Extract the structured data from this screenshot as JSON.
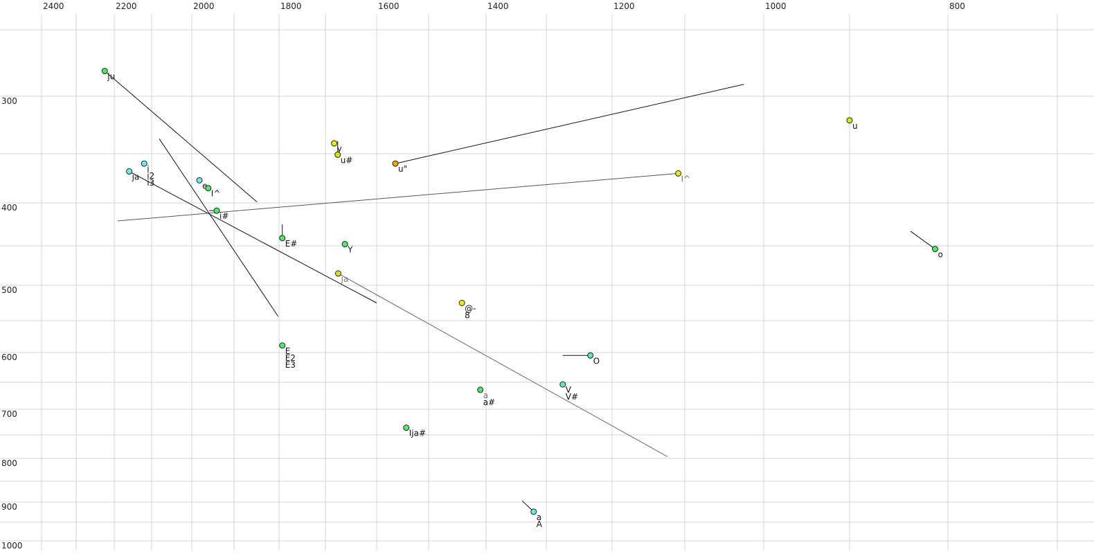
{
  "chart_data": {
    "type": "scatter",
    "title": "",
    "xlabel": "",
    "ylabel": "",
    "x_axis": {
      "position": "top",
      "reversed": true,
      "range": [
        2400,
        700
      ],
      "tick_labels": [
        2400,
        2200,
        2000,
        1800,
        1600,
        1400,
        1200,
        1000,
        800
      ],
      "grid_step": 100
    },
    "y_axis": {
      "position": "left",
      "reversed": false,
      "range": [
        250,
        1000
      ],
      "tick_labels": [
        300,
        400,
        500,
        600,
        700,
        800,
        900,
        1000
      ],
      "grid_step": 50
    },
    "grid": true,
    "points": [
      {
        "labels": [
          "ju"
        ],
        "x": 2225,
        "y": 281,
        "color": "#44ee66"
      },
      {
        "labels": [
          "i",
          "i2",
          "i3"
        ],
        "x": 2120,
        "y": 360,
        "color": "#66eeee"
      },
      {
        "labels": [
          "ja"
        ],
        "x": 2160,
        "y": 368,
        "color": "#66eeee"
      },
      {
        "labels": [
          "e"
        ],
        "x": 1982,
        "y": 377,
        "color": "#66eeee"
      },
      {
        "labels": [
          "I^"
        ],
        "x": 1961,
        "y": 385,
        "color": "#44ee66"
      },
      {
        "labels": [
          "i#"
        ],
        "x": 1941,
        "y": 409,
        "color": "#44ee66"
      },
      {
        "labels": [
          "E#"
        ],
        "x": 1793,
        "y": 441,
        "color": "#44ee66"
      },
      {
        "labels": [
          "y"
        ],
        "x": 1683,
        "y": 341,
        "color": "#eeee00"
      },
      {
        "labels": [
          "u#"
        ],
        "x": 1676,
        "y": 351,
        "color": "#ccee00"
      },
      {
        "labels": [
          "u\""
        ],
        "x": 1564,
        "y": 360,
        "color": "#eeaa00"
      },
      {
        "labels": [
          "I^"
        ],
        "x": 1109,
        "y": 370,
        "color": "#eeee00",
        "muted": true
      },
      {
        "labels": [
          "u"
        ],
        "x": 900,
        "y": 321,
        "color": "#ccee00"
      },
      {
        "labels": [
          "o"
        ],
        "x": 813,
        "y": 454,
        "color": "#44ee66"
      },
      {
        "labels": [
          "Y"
        ],
        "x": 1662,
        "y": 448,
        "color": "#44ee66"
      },
      {
        "labels": [
          "ja"
        ],
        "x": 1675,
        "y": 485,
        "color": "#dddd22",
        "muted": true
      },
      {
        "labels": [
          "@-",
          "8"
        ],
        "x": 1442,
        "y": 525,
        "color": "#eeee00"
      },
      {
        "labels": [
          "E",
          "E2",
          "E3"
        ],
        "x": 1793,
        "y": 589,
        "color": "#44ee66"
      },
      {
        "labels": [
          "O"
        ],
        "x": 1233,
        "y": 605,
        "color": "#55eeaa"
      },
      {
        "labels": [
          "a",
          "a#"
        ],
        "x": 1410,
        "y": 664,
        "color": "#44ee66",
        "first_muted": true
      },
      {
        "labels": [
          "V",
          "V#"
        ],
        "x": 1275,
        "y": 654,
        "color": "#55eeaa"
      },
      {
        "labels": [
          "Ija#"
        ],
        "x": 1543,
        "y": 736,
        "color": "#44ee66"
      },
      {
        "labels": [
          "a",
          "A"
        ],
        "x": 1321,
        "y": 924,
        "color": "#66eeee"
      }
    ],
    "trajectories": [
      {
        "from": [
          2225,
          281
        ],
        "to": [
          1849,
          399
        ],
        "color": "#111111"
      },
      {
        "from": [
          2081,
          337
        ],
        "to": [
          1802,
          544
        ],
        "color": "#111111"
      },
      {
        "from": [
          2160,
          368
        ],
        "to": [
          1600,
          525
        ],
        "color": "#111111"
      },
      {
        "from": [
          2191,
          421
        ],
        "to": [
          1109,
          370
        ],
        "color": "#555555"
      },
      {
        "from": [
          1564,
          360
        ],
        "to": [
          1025,
          291
        ],
        "color": "#111111"
      },
      {
        "from": [
          1675,
          485
        ],
        "to": [
          1124,
          796
        ],
        "color": "#666666"
      },
      {
        "from": [
          838,
          433
        ],
        "to": [
          813,
          454
        ],
        "color": "#111111"
      },
      {
        "from": [
          1275,
          605
        ],
        "to": [
          1233,
          605
        ],
        "color": "#111111"
      },
      {
        "from": [
          1340,
          897
        ],
        "to": [
          1321,
          924
        ],
        "color": "#111111"
      },
      {
        "from": [
          1793,
          425
        ],
        "to": [
          1793,
          441
        ],
        "color": "#111111"
      },
      {
        "from": [
          1676,
          339
        ],
        "to": [
          1676,
          351
        ],
        "color": "#111111"
      },
      {
        "from": [
          1959,
          409
        ],
        "to": [
          1941,
          409
        ],
        "color": "#111111"
      }
    ]
  }
}
